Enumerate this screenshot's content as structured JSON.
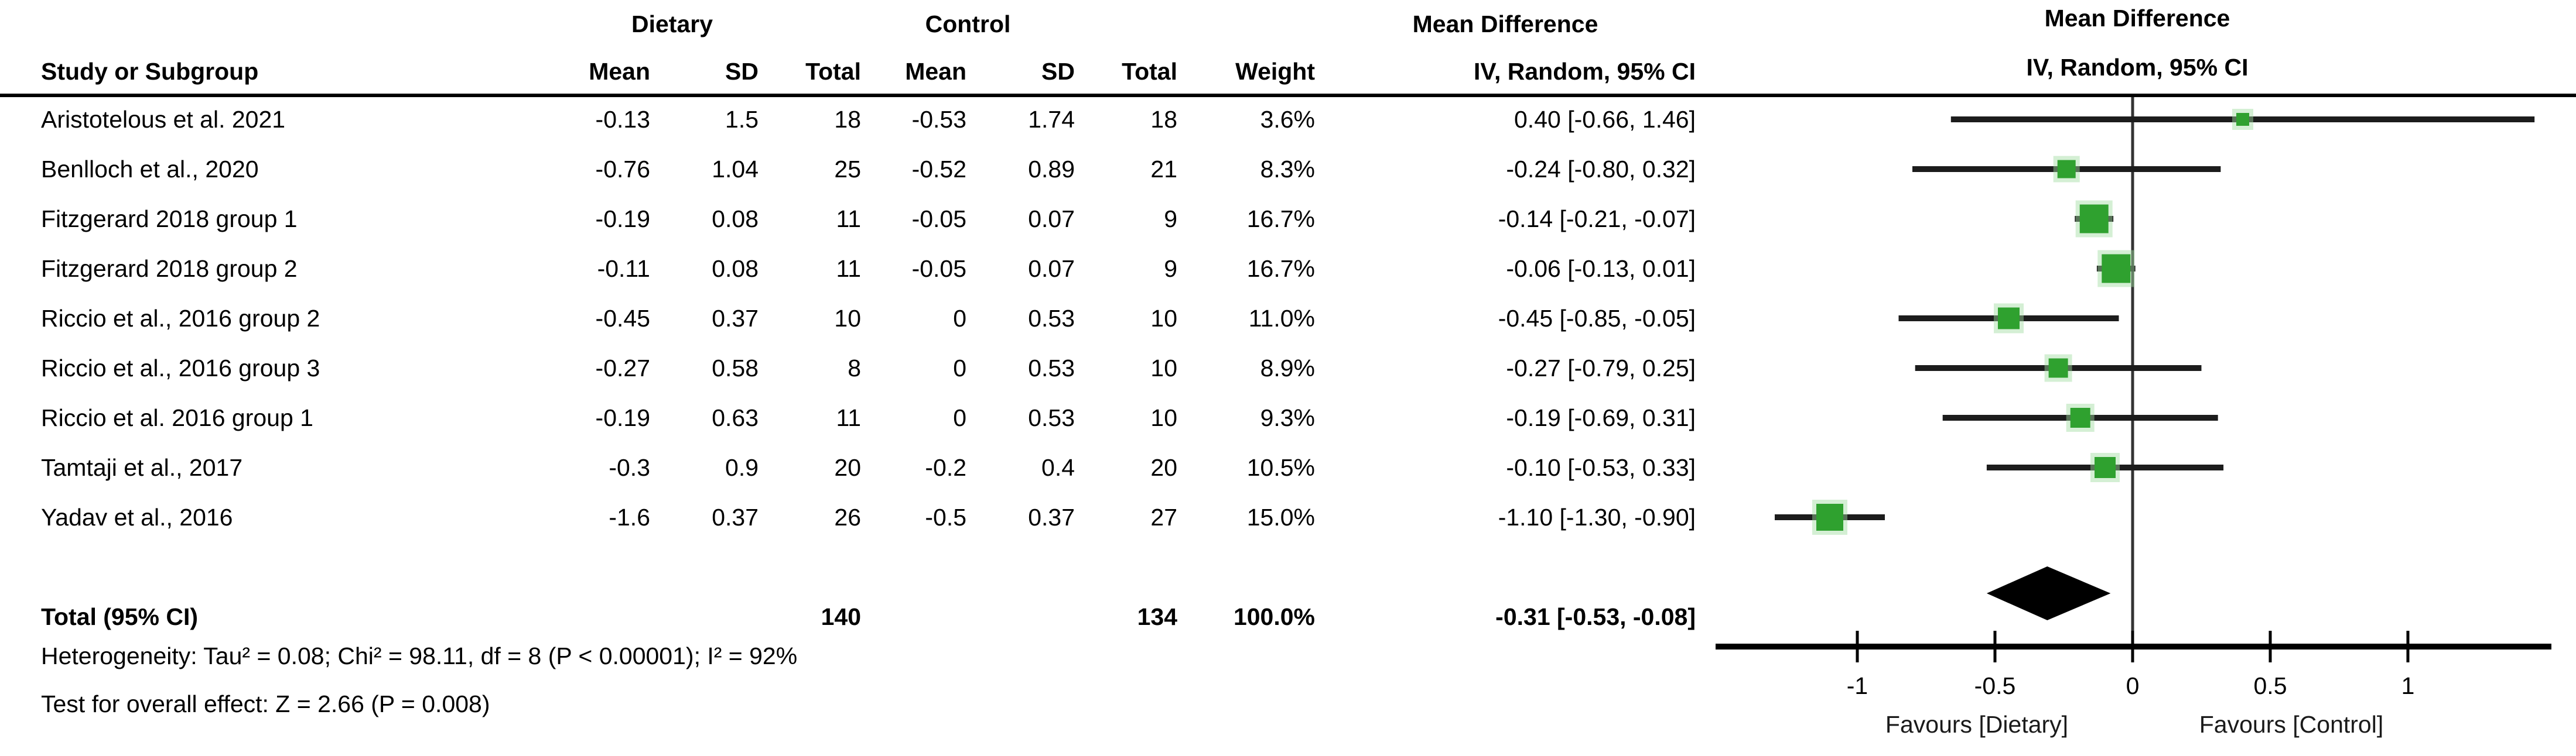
{
  "table": {
    "group_headers": {
      "dietary": "Dietary",
      "control": "Control",
      "mean_difference": "Mean Difference"
    },
    "columns": {
      "study": "Study or Subgroup",
      "mean": "Mean",
      "sd": "SD",
      "total": "Total",
      "weight": "Weight",
      "ci": "IV, Random, 95% CI"
    },
    "rows": [
      {
        "study": "Aristotelous et al. 2021",
        "d_mean": "-0.13",
        "d_sd": "1.5",
        "d_total": "18",
        "c_mean": "-0.53",
        "c_sd": "1.74",
        "c_total": "18",
        "weight": "3.6%",
        "md_ci": "0.40 [-0.66, 1.46]"
      },
      {
        "study": "Benlloch et al., 2020",
        "d_mean": "-0.76",
        "d_sd": "1.04",
        "d_total": "25",
        "c_mean": "-0.52",
        "c_sd": "0.89",
        "c_total": "21",
        "weight": "8.3%",
        "md_ci": "-0.24 [-0.80, 0.32]"
      },
      {
        "study": "Fitzgerard 2018 group 1",
        "d_mean": "-0.19",
        "d_sd": "0.08",
        "d_total": "11",
        "c_mean": "-0.05",
        "c_sd": "0.07",
        "c_total": "9",
        "weight": "16.7%",
        "md_ci": "-0.14 [-0.21, -0.07]"
      },
      {
        "study": "Fitzgerard 2018 group 2",
        "d_mean": "-0.11",
        "d_sd": "0.08",
        "d_total": "11",
        "c_mean": "-0.05",
        "c_sd": "0.07",
        "c_total": "9",
        "weight": "16.7%",
        "md_ci": "-0.06 [-0.13, 0.01]"
      },
      {
        "study": "Riccio et al., 2016 group 2",
        "d_mean": "-0.45",
        "d_sd": "0.37",
        "d_total": "10",
        "c_mean": "0",
        "c_sd": "0.53",
        "c_total": "10",
        "weight": "11.0%",
        "md_ci": "-0.45 [-0.85, -0.05]"
      },
      {
        "study": "Riccio et al., 2016 group 3",
        "d_mean": "-0.27",
        "d_sd": "0.58",
        "d_total": "8",
        "c_mean": "0",
        "c_sd": "0.53",
        "c_total": "10",
        "weight": "8.9%",
        "md_ci": "-0.27 [-0.79, 0.25]"
      },
      {
        "study": "Riccio et al. 2016 group 1",
        "d_mean": "-0.19",
        "d_sd": "0.63",
        "d_total": "11",
        "c_mean": "0",
        "c_sd": "0.53",
        "c_total": "10",
        "weight": "9.3%",
        "md_ci": "-0.19 [-0.69, 0.31]"
      },
      {
        "study": "Tamtaji et al., 2017",
        "d_mean": "-0.3",
        "d_sd": "0.9",
        "d_total": "20",
        "c_mean": "-0.2",
        "c_sd": "0.4",
        "c_total": "20",
        "weight": "10.5%",
        "md_ci": "-0.10 [-0.53, 0.33]"
      },
      {
        "study": "Yadav et al., 2016",
        "d_mean": "-1.6",
        "d_sd": "0.37",
        "d_total": "26",
        "c_mean": "-0.5",
        "c_sd": "0.37",
        "c_total": "27",
        "weight": "15.0%",
        "md_ci": "-1.10 [-1.30, -0.90]"
      }
    ],
    "total": {
      "label": "Total (95% CI)",
      "d_total": "140",
      "c_total": "134",
      "weight": "100.0%",
      "md_ci": "-0.31 [-0.53, -0.08]"
    },
    "footer": {
      "heterogeneity": "Heterogeneity: Tau² = 0.08; Chi² = 98.11, df = 8 (P < 0.00001); I² = 92%",
      "overall_effect": "Test for overall effect: Z = 2.66 (P = 0.008)"
    }
  },
  "chart_data": {
    "type": "scatter",
    "subtype": "forest-plot",
    "title": "Mean Difference",
    "subtitle": "IV, Random, 95% CI",
    "studies": [
      "Aristotelous et al. 2021",
      "Benlloch et al., 2020",
      "Fitzgerard 2018 group 1",
      "Fitzgerard 2018 group 2",
      "Riccio et al., 2016 group 2",
      "Riccio et al., 2016 group 3",
      "Riccio et al. 2016 group 1",
      "Tamtaji et al., 2017",
      "Yadav et al., 2016"
    ],
    "mean_difference": [
      0.4,
      -0.24,
      -0.14,
      -0.06,
      -0.45,
      -0.27,
      -0.19,
      -0.1,
      -1.1
    ],
    "ci_low": [
      -0.66,
      -0.8,
      -0.21,
      -0.13,
      -0.85,
      -0.79,
      -0.69,
      -0.53,
      -1.3
    ],
    "ci_high": [
      1.46,
      0.32,
      -0.07,
      0.01,
      -0.05,
      0.25,
      0.31,
      0.33,
      -0.9
    ],
    "weights_pct": [
      3.6,
      8.3,
      16.7,
      16.7,
      11.0,
      8.9,
      9.3,
      10.5,
      15.0
    ],
    "summary": {
      "label": "Total (95% CI)",
      "mean_difference": -0.31,
      "ci_low": -0.53,
      "ci_high": -0.08
    },
    "x_axis": {
      "xlim": [
        -1.52,
        1.52
      ],
      "ticks": [
        -1,
        -0.5,
        0,
        0.5,
        1
      ],
      "tick_labels": [
        "-1",
        "-0.5",
        "0",
        "0.5",
        "1"
      ],
      "zero_line": 0,
      "label_left": "Favours [Dietary]",
      "label_right": "Favours [Control]"
    },
    "legend_position": "none",
    "grid": false,
    "colors": {
      "marker": "#2FA12F",
      "marker_glow": "#9FDC9F",
      "ci_line": "#1c1c1c",
      "diamond": "#000000",
      "axis": "#000000",
      "zero_line": "#333333"
    }
  }
}
